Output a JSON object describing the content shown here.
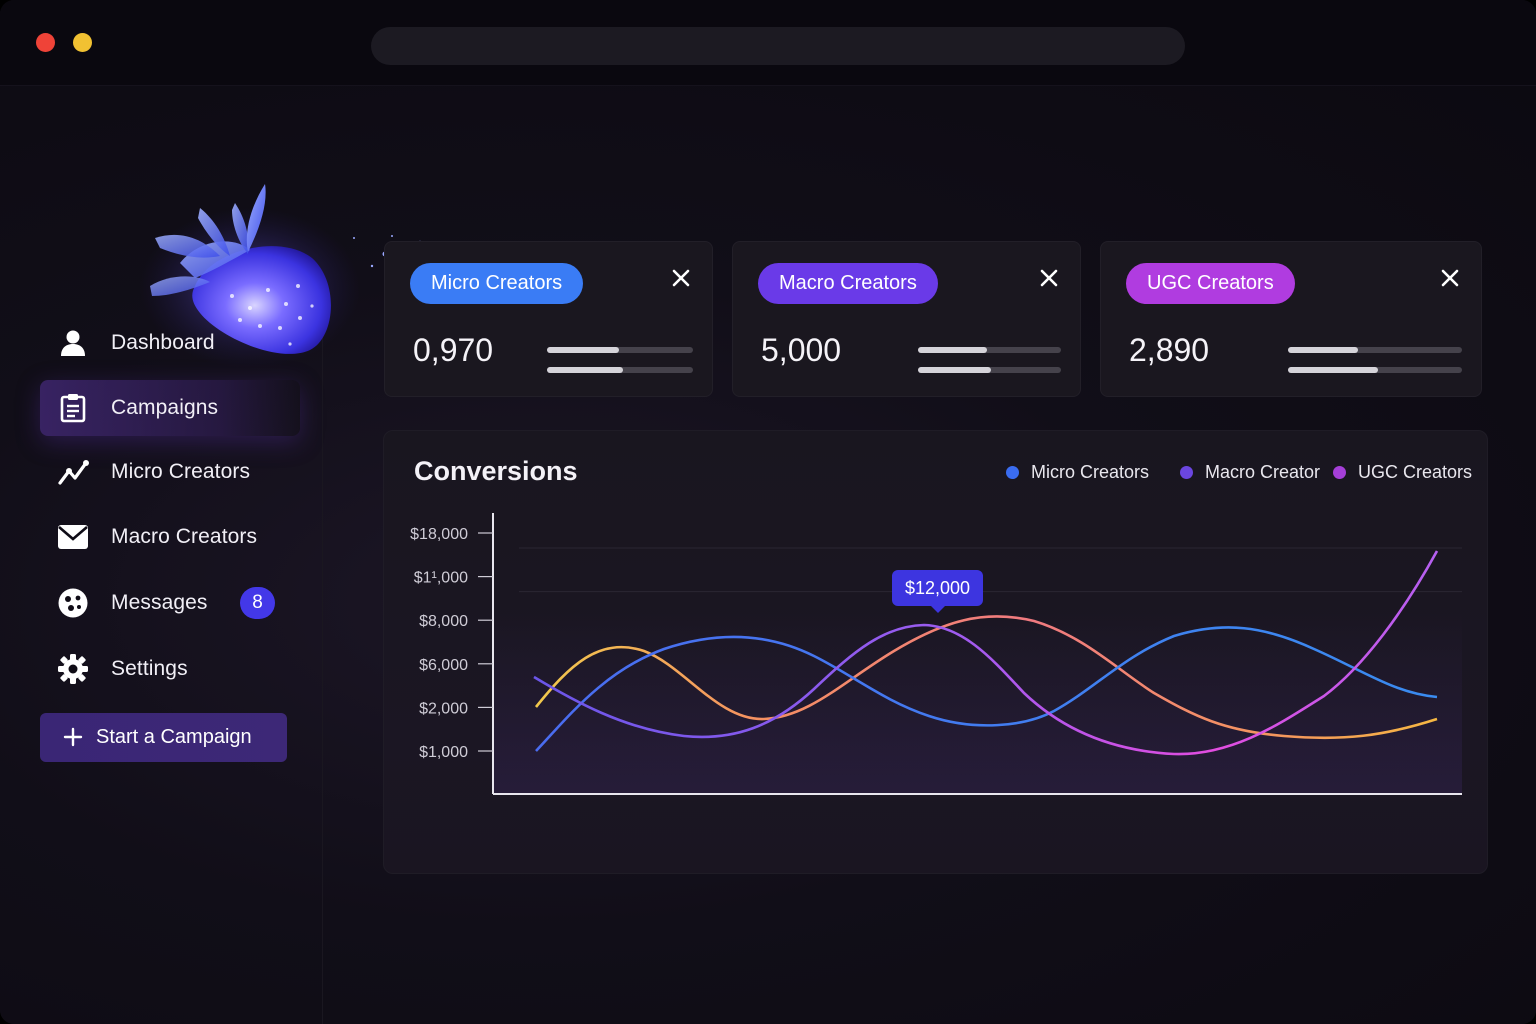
{
  "sidebar": {
    "items": [
      {
        "label": "Dashboard",
        "icon": "user-icon"
      },
      {
        "label": "Campaigns",
        "icon": "clipboard-icon",
        "active": true
      },
      {
        "label": "Micro Creators",
        "icon": "trend-icon"
      },
      {
        "label": "Macro Creators",
        "icon": "mail-icon"
      },
      {
        "label": "Messages",
        "icon": "chat-icon",
        "badge": "8"
      },
      {
        "label": "Settings",
        "icon": "gear-icon"
      }
    ],
    "cta_label": "Start a Campaign"
  },
  "cards": [
    {
      "label": "Micro Creators",
      "value": "0,970",
      "color": "#3a7cf5",
      "bars": [
        0.49,
        0.52
      ]
    },
    {
      "label": "Macro Creators",
      "value": "5,000",
      "color": "#6a3ae8",
      "bars": [
        0.48,
        0.51
      ]
    },
    {
      "label": "UGC Creators",
      "value": "2,890",
      "color": "#b03ce0",
      "bars": [
        0.4,
        0.52
      ]
    }
  ],
  "chart": {
    "title": "Conversions",
    "legend": [
      {
        "label": "Micro Creators",
        "color": "#3a6cf0"
      },
      {
        "label": "Macro Creator",
        "color": "#6b46e0"
      },
      {
        "label": "UGC Creators",
        "color": "#a53fd8"
      }
    ],
    "tooltip": "$12,000"
  },
  "chart_data": {
    "type": "line",
    "title": "Conversions",
    "y_tick_labels": [
      "$18,000",
      "$1¹,000",
      "$8,000",
      "$6,000",
      "$2,000",
      "$1,000"
    ],
    "grid": true,
    "legend_position": "top-right",
    "series": [
      {
        "name": "Micro Creators",
        "color_start": "#4a6cf0",
        "color_end": "#3a8cf0"
      },
      {
        "name": "Macro Creator",
        "color_start": "#6b56e8",
        "color_end": "#e24de0"
      },
      {
        "name": "UGC Creators",
        "color_start": "#f2c94c",
        "color_end": "#b060f0"
      }
    ],
    "tooltip_value": "$12,000"
  },
  "colors": {
    "accent": "#4338e8",
    "background": "#0f0c16",
    "card": "#1a171f"
  }
}
